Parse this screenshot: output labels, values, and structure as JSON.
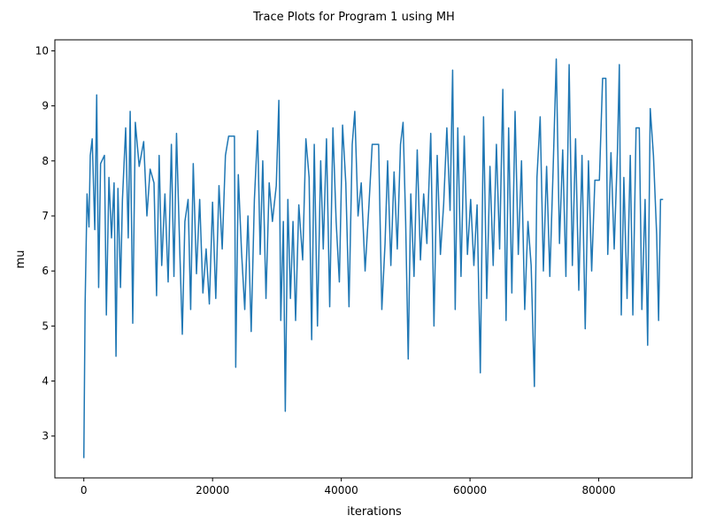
{
  "chart_data": {
    "type": "line",
    "title": "Trace Plots for Program 1 using MH",
    "xlabel": "iterations",
    "ylabel": "mu",
    "color": "#1f77b4",
    "xlim": [
      -4500,
      94500
    ],
    "ylim": [
      2.24,
      10.2
    ],
    "xticks": [
      0,
      20000,
      40000,
      60000,
      80000
    ],
    "yticks": [
      3,
      4,
      5,
      6,
      7,
      8,
      9,
      10
    ],
    "x": [
      0,
      200,
      500,
      800,
      1000,
      1300,
      1700,
      2000,
      2300,
      2600,
      3200,
      3500,
      3900,
      4300,
      4700,
      5000,
      5300,
      5700,
      6000,
      6500,
      6900,
      7200,
      7600,
      8000,
      8600,
      9300,
      9800,
      10300,
      10900,
      11300,
      11700,
      12100,
      12600,
      13100,
      13600,
      14000,
      14400,
      14900,
      15300,
      15700,
      16200,
      16600,
      17000,
      17500,
      18000,
      18500,
      19000,
      19500,
      20000,
      20500,
      21000,
      21500,
      22000,
      22500,
      23400,
      23600,
      24000,
      24500,
      25000,
      25500,
      26000,
      26500,
      27000,
      27400,
      27800,
      28300,
      28800,
      29300,
      29900,
      30300,
      30600,
      31000,
      31300,
      31700,
      32100,
      32500,
      32900,
      33400,
      34000,
      34500,
      35000,
      35400,
      35800,
      36300,
      36800,
      37200,
      37700,
      38200,
      38700,
      39200,
      39700,
      40200,
      40700,
      41200,
      41700,
      42100,
      42600,
      43100,
      43700,
      44300,
      44800,
      45800,
      46300,
      46800,
      47200,
      47700,
      48200,
      48700,
      49200,
      49600,
      50000,
      50400,
      50800,
      51300,
      51800,
      52300,
      52800,
      53300,
      53900,
      54400,
      54900,
      55400,
      55900,
      56400,
      56900,
      57300,
      57700,
      58100,
      58600,
      59100,
      59600,
      60100,
      60600,
      61100,
      61600,
      62100,
      62600,
      63100,
      63600,
      64100,
      64600,
      65100,
      65600,
      66000,
      66500,
      67000,
      67500,
      68000,
      68500,
      69000,
      69500,
      70000,
      70400,
      70900,
      71400,
      71900,
      72400,
      72900,
      73400,
      73900,
      74400,
      74900,
      75400,
      75900,
      76400,
      76900,
      77400,
      77900,
      78400,
      78900,
      79400,
      80100,
      80600,
      81100,
      81400,
      81900,
      82400,
      82900,
      83200,
      83500,
      83900,
      84400,
      84900,
      85300,
      85800,
      86300,
      86700,
      87200,
      87600,
      88000,
      88500,
      89000,
      89300,
      89600,
      90000
    ],
    "values": [
      2.6,
      5.4,
      7.4,
      6.8,
      8.1,
      8.4,
      6.75,
      9.2,
      5.7,
      7.95,
      8.1,
      5.2,
      7.7,
      6.6,
      7.6,
      4.45,
      7.5,
      5.7,
      7.3,
      8.6,
      6.6,
      8.9,
      5.05,
      8.7,
      7.9,
      8.35,
      7.0,
      7.85,
      7.6,
      5.55,
      8.1,
      6.1,
      7.4,
      5.8,
      8.3,
      5.9,
      8.5,
      6.4,
      4.85,
      6.9,
      7.3,
      5.3,
      7.95,
      5.95,
      7.3,
      5.6,
      6.4,
      5.4,
      7.25,
      5.5,
      7.55,
      6.4,
      8.1,
      8.45,
      8.45,
      4.25,
      7.75,
      6.35,
      5.3,
      7.0,
      4.9,
      7.3,
      8.55,
      6.3,
      8.0,
      5.5,
      7.6,
      6.9,
      7.55,
      9.1,
      5.1,
      6.9,
      3.45,
      7.3,
      5.5,
      6.9,
      5.1,
      7.2,
      6.2,
      8.4,
      7.7,
      4.75,
      8.3,
      5.0,
      8.0,
      6.4,
      8.4,
      5.35,
      8.6,
      6.9,
      5.8,
      8.65,
      7.6,
      5.35,
      8.3,
      8.9,
      7.0,
      7.6,
      6.0,
      7.2,
      8.3,
      8.3,
      5.3,
      6.5,
      8.0,
      6.1,
      7.8,
      6.4,
      8.3,
      8.7,
      6.9,
      4.4,
      7.4,
      5.9,
      8.2,
      6.2,
      7.4,
      6.5,
      8.5,
      5.0,
      8.1,
      6.3,
      7.2,
      8.6,
      7.1,
      9.65,
      5.3,
      8.6,
      5.9,
      8.45,
      6.3,
      7.3,
      6.1,
      7.2,
      4.15,
      8.8,
      5.5,
      7.9,
      6.1,
      8.3,
      6.4,
      9.3,
      5.1,
      8.6,
      5.6,
      8.9,
      6.3,
      8.0,
      5.3,
      6.9,
      6.1,
      3.9,
      7.7,
      8.8,
      6.0,
      7.9,
      5.9,
      7.8,
      9.85,
      6.5,
      8.2,
      5.9,
      9.75,
      6.1,
      8.4,
      5.65,
      8.1,
      4.95,
      8.0,
      6.0,
      7.65,
      7.65,
      9.5,
      9.5,
      6.3,
      8.15,
      6.4,
      8.15,
      9.75,
      5.2,
      7.7,
      5.5,
      8.1,
      5.2,
      8.6,
      8.6,
      5.3,
      7.3,
      4.65,
      8.95,
      8.1,
      6.65,
      5.1,
      7.3,
      7.3
    ]
  }
}
